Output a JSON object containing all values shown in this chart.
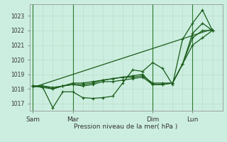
{
  "bg_color": "#cceee0",
  "grid_color": "#aad4be",
  "line_color": "#1a5c1a",
  "marker_color": "#1a5c1a",
  "xlabel": "Pression niveau de la mer( hPa )",
  "yticks": [
    1017,
    1018,
    1019,
    1020,
    1021,
    1022,
    1023
  ],
  "ylim": [
    1016.5,
    1023.8
  ],
  "xtick_labels": [
    "Sam",
    "Mar",
    "Dim",
    "Lun"
  ],
  "xtick_positions": [
    0,
    24,
    72,
    96
  ],
  "xlim": [
    -2,
    114
  ],
  "total_hours": 114,
  "series1_x": [
    0,
    6,
    12,
    18,
    24,
    30,
    36,
    42,
    48,
    54,
    60,
    66,
    72,
    78,
    84,
    90,
    96,
    102,
    108
  ],
  "series1_y": [
    1018.2,
    1018.1,
    1016.7,
    1017.8,
    1017.8,
    1017.4,
    1017.35,
    1017.4,
    1017.5,
    1018.4,
    1019.3,
    1019.2,
    1019.8,
    1019.4,
    1018.3,
    1021.4,
    1022.5,
    1023.4,
    1022.0
  ],
  "series2_x": [
    0,
    6,
    12,
    18,
    24,
    30,
    36,
    42,
    48,
    54,
    60,
    66,
    72,
    78,
    84,
    90,
    96,
    102,
    108
  ],
  "series2_y": [
    1018.2,
    1018.1,
    1018.0,
    1018.2,
    1018.3,
    1018.2,
    1018.3,
    1018.5,
    1018.5,
    1018.6,
    1018.7,
    1018.8,
    1018.3,
    1018.3,
    1018.4,
    1019.7,
    1021.0,
    1021.5,
    1022.0
  ],
  "series3_x": [
    0,
    6,
    12,
    18,
    24,
    30,
    36,
    42,
    48,
    54,
    60,
    66,
    72,
    78,
    84,
    90,
    96,
    102,
    108
  ],
  "series3_y": [
    1018.2,
    1018.2,
    1018.0,
    1018.2,
    1018.3,
    1018.3,
    1018.4,
    1018.6,
    1018.7,
    1018.8,
    1018.9,
    1019.0,
    1018.3,
    1018.3,
    1018.4,
    1019.7,
    1021.5,
    1022.0,
    1022.0
  ],
  "series4_x": [
    0,
    6,
    12,
    18,
    24,
    30,
    36,
    42,
    48,
    54,
    60,
    66,
    72,
    78,
    84,
    90,
    96,
    102,
    108
  ],
  "series4_y": [
    1018.2,
    1018.2,
    1018.1,
    1018.2,
    1018.4,
    1018.4,
    1018.5,
    1018.6,
    1018.7,
    1018.8,
    1018.8,
    1018.9,
    1018.4,
    1018.4,
    1018.4,
    1019.7,
    1021.8,
    1022.5,
    1022.0
  ],
  "trend_x": [
    0,
    108
  ],
  "trend_y": [
    1018.1,
    1022.1
  ],
  "vline_hours": [
    0,
    24,
    72,
    96
  ],
  "minor_vline_color": "#b8deca",
  "major_vline_color": "#2d7a2d"
}
